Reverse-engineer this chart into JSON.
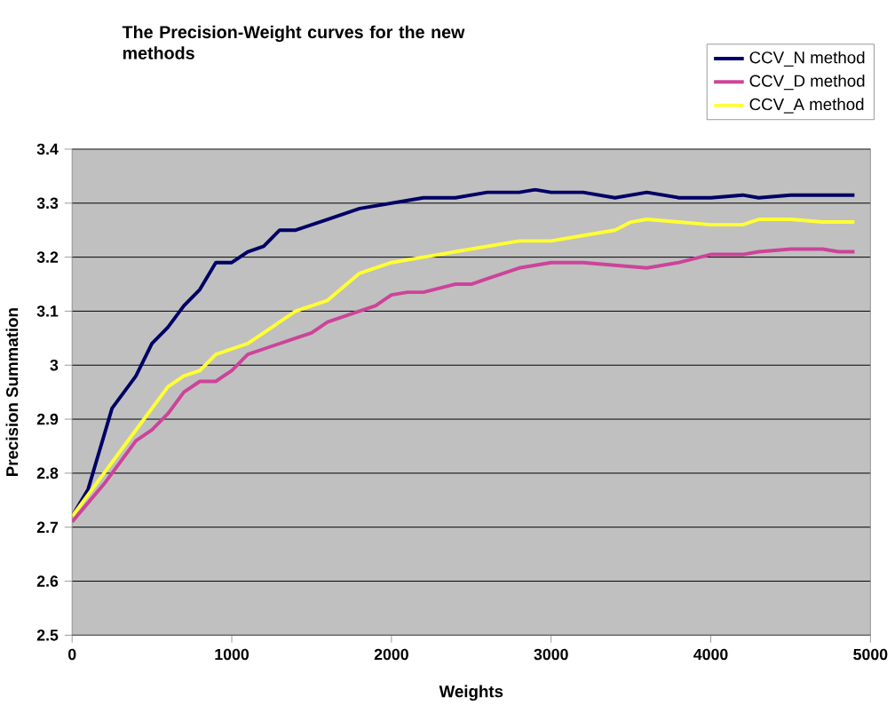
{
  "chart_data": {
    "type": "line",
    "title": "The Precision-Weight curves for the new methods",
    "xlabel": "Weights",
    "ylabel": "Precision Summation",
    "xlim": [
      0,
      5000
    ],
    "ylim": [
      2.5,
      3.4
    ],
    "xticks": [
      0,
      1000,
      2000,
      3000,
      4000,
      5000
    ],
    "yticks": [
      2.5,
      2.6,
      2.7,
      2.8,
      2.9,
      3,
      3.1,
      3.2,
      3.3,
      3.4
    ],
    "grid": "y",
    "legend": "top right",
    "marker": "none",
    "line_style": "solid",
    "series": [
      {
        "name": "CCV_N method",
        "color": "#000066",
        "x": [
          0,
          100,
          200,
          250,
          400,
          500,
          600,
          700,
          800,
          900,
          1000,
          1100,
          1200,
          1300,
          1400,
          1600,
          1800,
          2000,
          2200,
          2400,
          2600,
          2800,
          2900,
          3000,
          3200,
          3400,
          3600,
          3800,
          4000,
          4200,
          4300,
          4500,
          4700,
          4900
        ],
        "values": [
          2.72,
          2.77,
          2.87,
          2.92,
          2.98,
          3.04,
          3.07,
          3.11,
          3.14,
          3.19,
          3.19,
          3.21,
          3.22,
          3.25,
          3.25,
          3.27,
          3.29,
          3.3,
          3.31,
          3.31,
          3.32,
          3.32,
          3.325,
          3.32,
          3.32,
          3.31,
          3.32,
          3.31,
          3.31,
          3.315,
          3.31,
          3.315,
          3.315,
          3.315
        ]
      },
      {
        "name": "CCV_D method",
        "color": "#cc4499",
        "x": [
          0,
          200,
          400,
          500,
          600,
          700,
          800,
          900,
          1000,
          1100,
          1200,
          1400,
          1500,
          1600,
          1800,
          1900,
          2000,
          2100,
          2200,
          2400,
          2500,
          2600,
          2800,
          3000,
          3200,
          3400,
          3600,
          3800,
          4000,
          4200,
          4300,
          4500,
          4700,
          4800,
          4900
        ],
        "values": [
          2.71,
          2.78,
          2.86,
          2.88,
          2.91,
          2.95,
          2.97,
          2.97,
          2.99,
          3.02,
          3.03,
          3.05,
          3.06,
          3.08,
          3.1,
          3.11,
          3.13,
          3.135,
          3.135,
          3.15,
          3.15,
          3.16,
          3.18,
          3.19,
          3.19,
          3.185,
          3.18,
          3.19,
          3.205,
          3.205,
          3.21,
          3.215,
          3.215,
          3.21,
          3.21
        ]
      },
      {
        "name": "CCV_A method",
        "color": "#ffff33",
        "x": [
          0,
          200,
          400,
          600,
          700,
          800,
          900,
          1000,
          1100,
          1200,
          1300,
          1400,
          1600,
          1800,
          2000,
          2200,
          2400,
          2600,
          2800,
          3000,
          3200,
          3400,
          3500,
          3600,
          3800,
          4000,
          4200,
          4300,
          4500,
          4700,
          4900
        ],
        "values": [
          2.72,
          2.8,
          2.88,
          2.96,
          2.98,
          2.99,
          3.02,
          3.03,
          3.04,
          3.06,
          3.08,
          3.1,
          3.12,
          3.17,
          3.19,
          3.2,
          3.21,
          3.22,
          3.23,
          3.23,
          3.24,
          3.25,
          3.265,
          3.27,
          3.265,
          3.26,
          3.26,
          3.27,
          3.27,
          3.265,
          3.265
        ]
      }
    ]
  }
}
